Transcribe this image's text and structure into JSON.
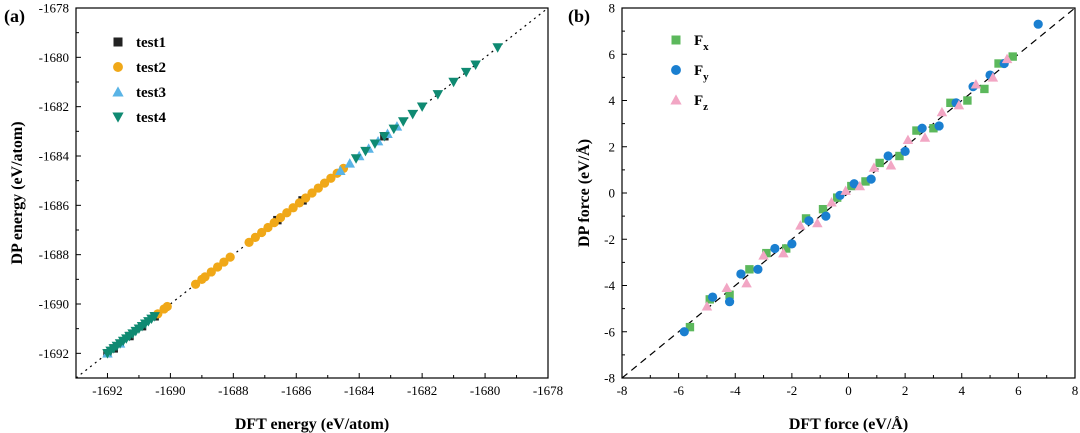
{
  "chart_data": [
    {
      "type": "scatter",
      "panel_label": "(a)",
      "title": "",
      "xlabel": "DFT energy (eV/atom)",
      "ylabel": "DP energy (eV/atom)",
      "xlim": [
        -1693,
        -1678
      ],
      "ylim": [
        -1693,
        -1678
      ],
      "xticks": [
        -1692,
        -1690,
        -1688,
        -1686,
        -1684,
        -1682,
        -1680,
        -1678
      ],
      "yticks": [
        -1692,
        -1690,
        -1688,
        -1686,
        -1684,
        -1682,
        -1680,
        -1678
      ],
      "reference_line": "y = x (dotted)",
      "legend_position": "top-left",
      "series": [
        {
          "name": "test1",
          "marker": "square",
          "color": "#222222",
          "x": [
            -1692.0,
            -1691.8,
            -1691.3,
            -1690.9,
            -1690.5,
            -1686.6,
            -1685.8,
            -1683.2
          ],
          "y": [
            -1692.0,
            -1691.8,
            -1691.3,
            -1690.9,
            -1690.5,
            -1686.6,
            -1685.8,
            -1683.2
          ]
        },
        {
          "name": "test2",
          "marker": "circle",
          "color": "#f0a818",
          "x": [
            -1690.1,
            -1690.2,
            -1690.4,
            -1689.2,
            -1689.0,
            -1688.9,
            -1688.7,
            -1688.5,
            -1688.3,
            -1688.1,
            -1687.5,
            -1687.3,
            -1687.1,
            -1686.9,
            -1686.7,
            -1686.5,
            -1686.3,
            -1686.1,
            -1685.9,
            -1685.7,
            -1685.5,
            -1685.3,
            -1685.1,
            -1684.9,
            -1684.7,
            -1684.5
          ],
          "y": [
            -1690.1,
            -1690.2,
            -1690.4,
            -1689.2,
            -1689.0,
            -1688.9,
            -1688.7,
            -1688.5,
            -1688.3,
            -1688.1,
            -1687.5,
            -1687.3,
            -1687.1,
            -1686.9,
            -1686.7,
            -1686.5,
            -1686.3,
            -1686.1,
            -1685.9,
            -1685.7,
            -1685.5,
            -1685.3,
            -1685.1,
            -1684.9,
            -1684.7,
            -1684.5
          ]
        },
        {
          "name": "test3",
          "marker": "triangle-up",
          "color": "#5ab4e6",
          "x": [
            -1692.0,
            -1691.6,
            -1684.6,
            -1684.3,
            -1684.0,
            -1683.7,
            -1683.4,
            -1683.1,
            -1682.8
          ],
          "y": [
            -1692.0,
            -1691.6,
            -1684.6,
            -1684.3,
            -1684.0,
            -1683.7,
            -1683.4,
            -1683.1,
            -1682.8
          ]
        },
        {
          "name": "test4",
          "marker": "triangle-down",
          "color": "#0f8a72",
          "x": [
            -1692.0,
            -1691.9,
            -1691.8,
            -1691.7,
            -1691.6,
            -1691.5,
            -1691.4,
            -1691.3,
            -1691.2,
            -1691.1,
            -1691.0,
            -1690.9,
            -1690.8,
            -1690.7,
            -1690.6,
            -1690.5,
            -1684.1,
            -1683.8,
            -1683.5,
            -1683.2,
            -1682.9,
            -1682.6,
            -1682.3,
            -1682.0,
            -1681.5,
            -1681.0,
            -1680.6,
            -1680.3,
            -1679.6
          ],
          "y": [
            -1692.0,
            -1691.9,
            -1691.8,
            -1691.7,
            -1691.6,
            -1691.5,
            -1691.4,
            -1691.3,
            -1691.2,
            -1691.1,
            -1691.0,
            -1690.9,
            -1690.8,
            -1690.7,
            -1690.6,
            -1690.5,
            -1684.1,
            -1683.8,
            -1683.5,
            -1683.2,
            -1682.9,
            -1682.6,
            -1682.3,
            -1682.0,
            -1681.5,
            -1681.0,
            -1680.6,
            -1680.3,
            -1679.6
          ]
        }
      ]
    },
    {
      "type": "scatter",
      "panel_label": "(b)",
      "title": "",
      "xlabel": "DFT force (eV/Å)",
      "ylabel": "DP force (eV/Å)",
      "xlim": [
        -8,
        8
      ],
      "ylim": [
        -8,
        8
      ],
      "xticks": [
        -8,
        -6,
        -4,
        -2,
        0,
        2,
        4,
        6,
        8
      ],
      "yticks": [
        -8,
        -6,
        -4,
        -2,
        0,
        2,
        4,
        6,
        8
      ],
      "reference_line": "y = x (dashed)",
      "legend_position": "top-left",
      "series": [
        {
          "name": "F",
          "subscript": "x",
          "marker": "square",
          "color": "#5cb85c",
          "x": [
            -5.6,
            -4.9,
            -4.2,
            -3.5,
            -2.9,
            -2.2,
            -1.5,
            -0.9,
            -0.4,
            0.1,
            0.6,
            1.1,
            1.8,
            2.4,
            3.0,
            3.6,
            4.2,
            4.8,
            5.3,
            5.8
          ],
          "y": [
            -5.8,
            -4.6,
            -4.4,
            -3.3,
            -2.6,
            -2.4,
            -1.1,
            -0.7,
            -0.2,
            0.3,
            0.5,
            1.3,
            1.6,
            2.7,
            2.8,
            3.9,
            4.0,
            4.5,
            5.6,
            5.9
          ]
        },
        {
          "name": "F",
          "subscript": "y",
          "marker": "circle",
          "color": "#1a7fd0",
          "x": [
            -5.8,
            -4.8,
            -4.2,
            -3.8,
            -3.2,
            -2.6,
            -2.0,
            -1.4,
            -0.8,
            -0.3,
            0.2,
            0.8,
            1.4,
            2.0,
            2.6,
            3.2,
            3.8,
            4.4,
            5.0,
            5.5,
            6.7
          ],
          "y": [
            -6.0,
            -4.5,
            -4.7,
            -3.5,
            -3.3,
            -2.4,
            -2.2,
            -1.2,
            -1.0,
            -0.1,
            0.4,
            0.6,
            1.6,
            1.8,
            2.8,
            2.9,
            3.9,
            4.6,
            5.1,
            5.6,
            7.3
          ]
        },
        {
          "name": "F",
          "subscript": "z",
          "marker": "triangle-up",
          "color": "#f2a6c4",
          "x": [
            -5.0,
            -4.3,
            -3.6,
            -3.0,
            -2.3,
            -1.7,
            -1.1,
            -0.6,
            -0.1,
            0.4,
            0.9,
            1.5,
            2.1,
            2.7,
            3.3,
            3.9,
            4.5,
            5.1,
            5.6
          ],
          "y": [
            -4.9,
            -4.1,
            -3.9,
            -2.7,
            -2.6,
            -1.4,
            -1.3,
            -0.4,
            0.1,
            0.3,
            1.1,
            1.2,
            2.3,
            2.4,
            3.5,
            3.8,
            4.7,
            5.0,
            5.8
          ]
        }
      ]
    }
  ]
}
